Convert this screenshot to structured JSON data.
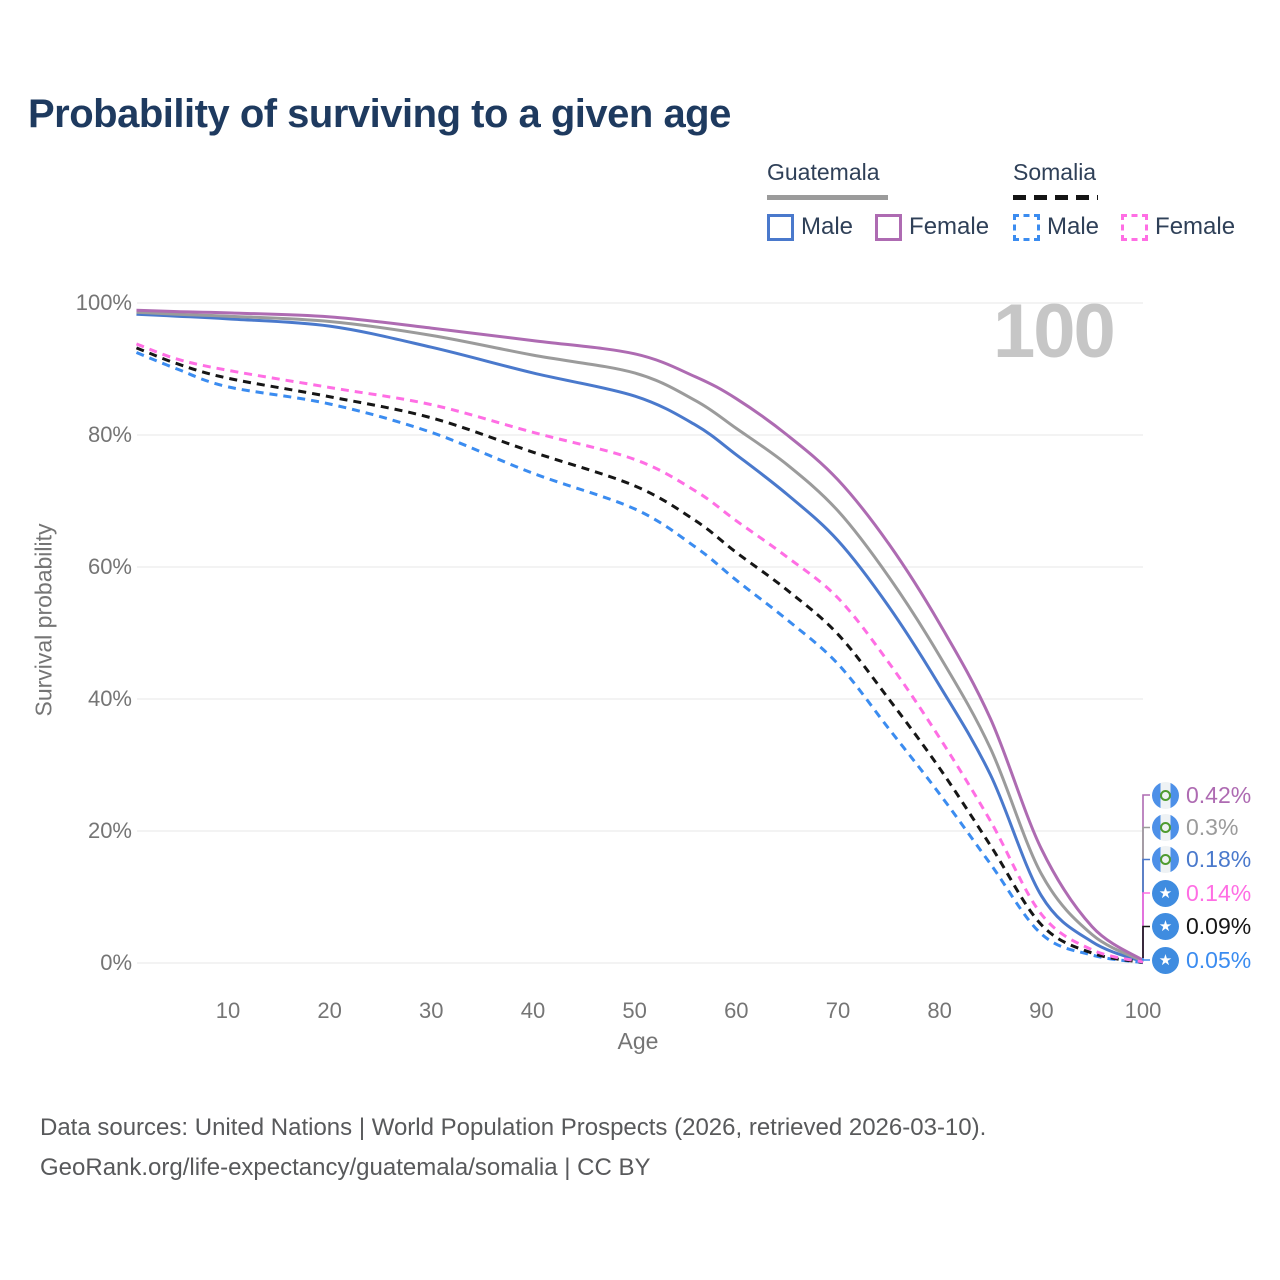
{
  "title": "Probability of surviving to a given age",
  "watermark": "100",
  "legend": {
    "groups": [
      {
        "country": "Guatemala",
        "line_style": "solid",
        "items": [
          {
            "label": "Male",
            "color": "#4a79cc",
            "dashed": false
          },
          {
            "label": "Female",
            "color": "#ae6bb2",
            "dashed": false
          }
        ]
      },
      {
        "country": "Somalia",
        "line_style": "dashed",
        "items": [
          {
            "label": "Male",
            "color": "#3b8cf0",
            "dashed": true
          },
          {
            "label": "Female",
            "color": "#ff6ee4",
            "dashed": true
          }
        ]
      }
    ]
  },
  "axes": {
    "xlabel": "Age",
    "ylabel": "Survival probability",
    "x_tick_labels": [
      "10",
      "20",
      "30",
      "40",
      "50",
      "60",
      "70",
      "80",
      "90",
      "100"
    ],
    "x_tick_values": [
      10,
      20,
      30,
      40,
      50,
      60,
      70,
      80,
      90,
      100
    ],
    "y_tick_labels": [
      "100%",
      "80%",
      "60%",
      "40%",
      "20%",
      "0%"
    ],
    "y_tick_values": [
      100,
      80,
      60,
      40,
      20,
      0
    ],
    "grid_color": "#ececec"
  },
  "end_labels": [
    {
      "value": "0.42%",
      "color": "#ae6bb2",
      "flag": "guatemala"
    },
    {
      "value": "0.3%",
      "color": "#9b9b9b",
      "flag": "guatemala"
    },
    {
      "value": "0.18%",
      "color": "#4a79cc",
      "flag": "guatemala"
    },
    {
      "value": "0.14%",
      "color": "#ff6ee4",
      "flag": "somalia"
    },
    {
      "value": "0.09%",
      "color": "#161616",
      "flag": "somalia"
    },
    {
      "value": "0.05%",
      "color": "#3b8cf0",
      "flag": "somalia"
    }
  ],
  "footer": {
    "line1": "Data sources: United Nations | World Population Prospects (2026, retrieved 2026-03-10).",
    "line2": "GeoRank.org/life-expectancy/guatemala/somalia | CC BY"
  },
  "chart_data": {
    "type": "line",
    "title": "Probability of surviving to a given age",
    "xlabel": "Age",
    "ylabel": "Survival probability",
    "xlim": [
      1,
      100
    ],
    "ylim": [
      0,
      100
    ],
    "grid": true,
    "legend_position": "top-right",
    "x": [
      1,
      5,
      10,
      20,
      30,
      40,
      50,
      56,
      60,
      65,
      70,
      75,
      80,
      85,
      90,
      95,
      100
    ],
    "series": [
      {
        "id": "guatemala-male",
        "country": "Guatemala",
        "sex": "Male",
        "color": "#4a79cc",
        "dashed": false,
        "end_value_pct": 0.18,
        "values": [
          98.3,
          98.0,
          97.6,
          96.5,
          93.3,
          89.4,
          85.9,
          81.5,
          77.0,
          71.0,
          64.0,
          54.0,
          42.0,
          28.5,
          10.2,
          3.2,
          0.18
        ]
      },
      {
        "id": "guatemala-combined",
        "country": "Guatemala",
        "sex": "",
        "color": "#9b9b9b",
        "dashed": false,
        "end_value_pct": 0.3,
        "values": [
          98.6,
          98.3,
          98.0,
          97.2,
          95.1,
          92.1,
          89.4,
          85.2,
          81.0,
          75.5,
          68.5,
          58.5,
          46.5,
          32.5,
          13.5,
          4.3,
          0.3
        ]
      },
      {
        "id": "guatemala-female",
        "country": "Guatemala",
        "sex": "Female",
        "color": "#ae6bb2",
        "dashed": false,
        "end_value_pct": 0.42,
        "values": [
          98.9,
          98.7,
          98.5,
          97.9,
          96.2,
          94.3,
          92.3,
          88.8,
          85.5,
          80.0,
          73.2,
          63.5,
          51.4,
          37.0,
          17.3,
          5.5,
          0.42
        ]
      },
      {
        "id": "somalia-male",
        "country": "Somalia",
        "sex": "Male",
        "color": "#3b8cf0",
        "dashed": true,
        "end_value_pct": 0.05,
        "values": [
          92.5,
          90.0,
          87.3,
          84.7,
          80.4,
          74.2,
          68.8,
          63.0,
          58.0,
          52.0,
          45.3,
          35.5,
          25.6,
          15.0,
          4.4,
          1.2,
          0.05
        ]
      },
      {
        "id": "somalia-combined",
        "country": "Somalia",
        "sex": "",
        "color": "#161616",
        "dashed": true,
        "end_value_pct": 0.09,
        "values": [
          93.2,
          90.8,
          88.6,
          85.8,
          82.6,
          77.4,
          72.3,
          67.0,
          62.2,
          56.5,
          49.8,
          40.0,
          29.5,
          17.8,
          5.8,
          1.5,
          0.09
        ]
      },
      {
        "id": "somalia-female",
        "country": "Somalia",
        "sex": "Female",
        "color": "#ff6ee4",
        "dashed": true,
        "end_value_pct": 0.14,
        "values": [
          93.8,
          91.5,
          89.8,
          87.2,
          84.6,
          80.4,
          76.3,
          71.5,
          67.0,
          61.5,
          55.3,
          45.5,
          34.1,
          21.5,
          7.4,
          2.0,
          0.14
        ]
      }
    ]
  }
}
